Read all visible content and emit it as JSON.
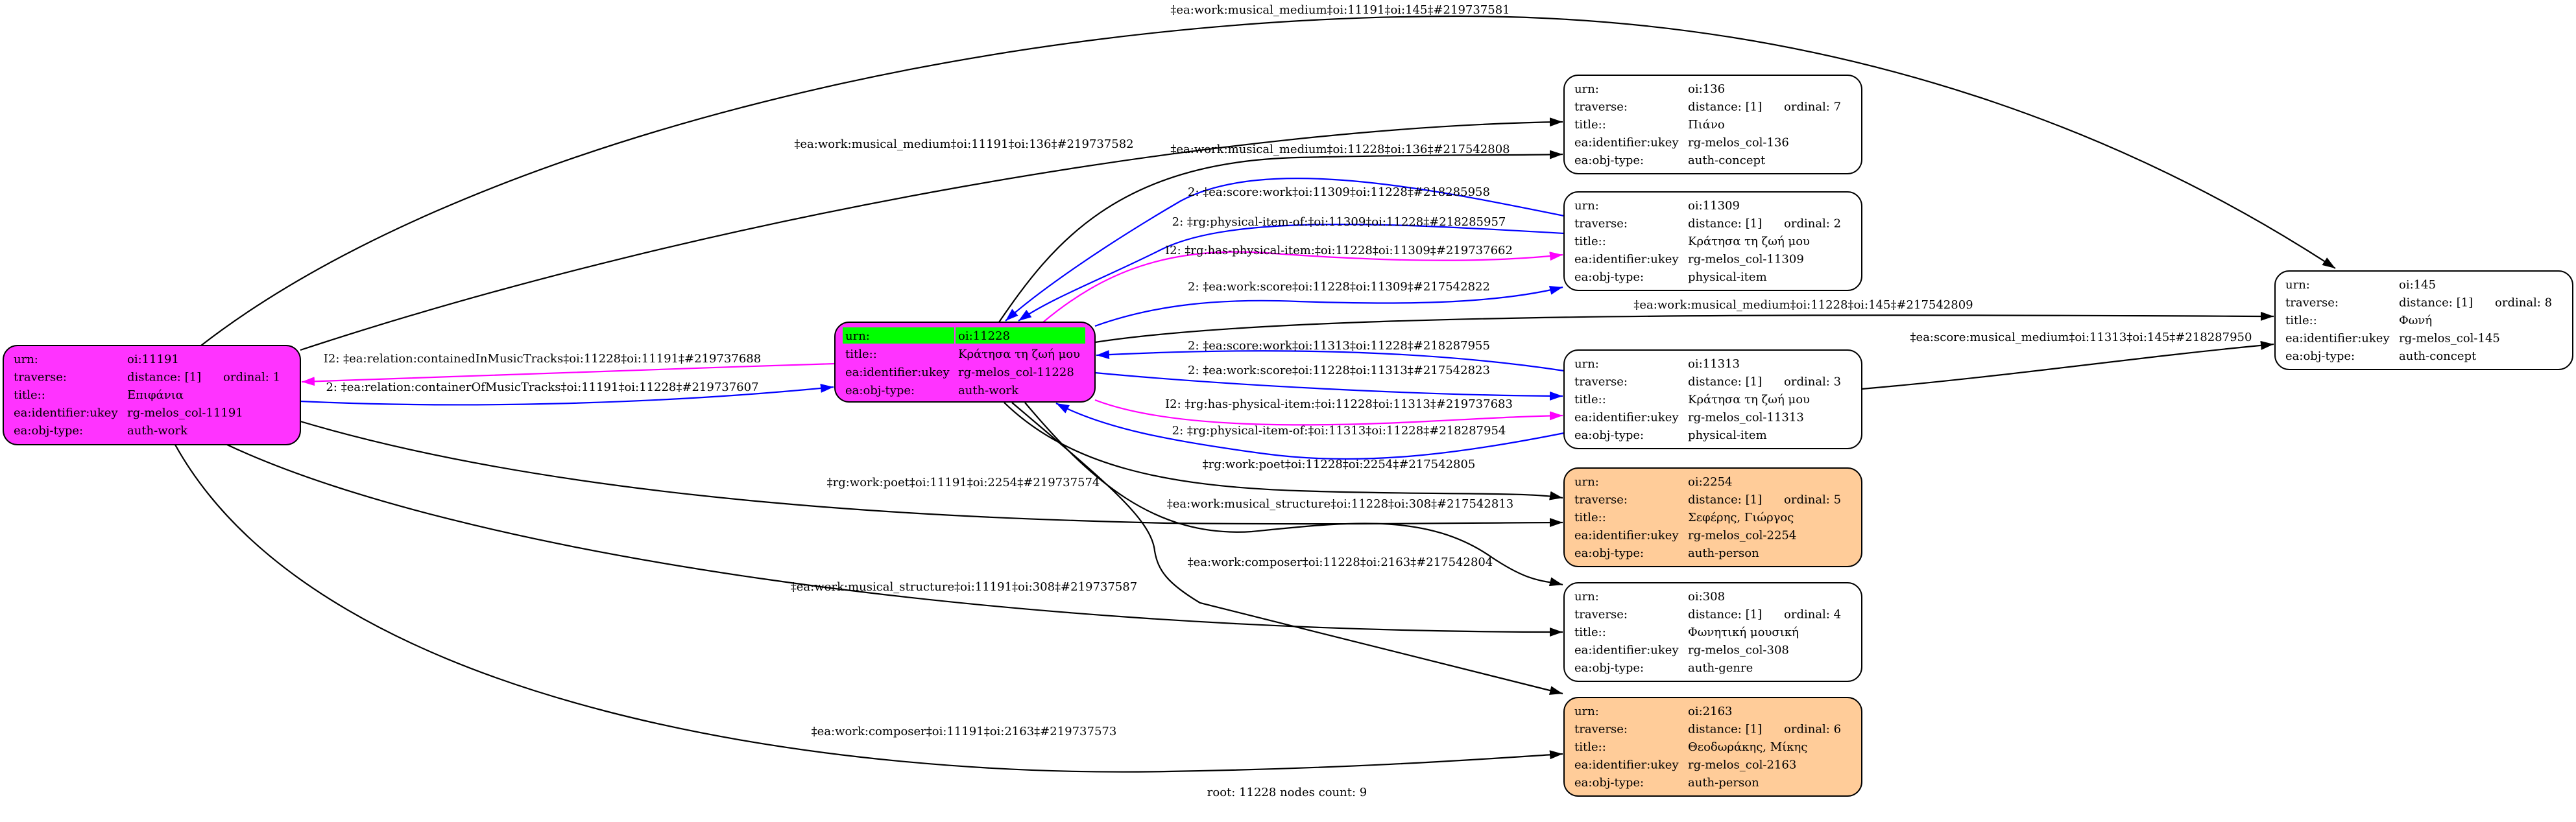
{
  "field_labels": {
    "urn": "urn:",
    "traverse": "traverse:",
    "title": "title::",
    "ukey": "ea:identifier:ukey",
    "obj_type": "ea:obj-type:"
  },
  "colors": {
    "work": "#ff33ff",
    "person": "#ffcc99",
    "default": "#ffffff",
    "root_highlight": "#00ff00",
    "blue_edge": "#0000ff",
    "magenta_edge": "#ff00ff",
    "black_edge": "#000000"
  },
  "nodes": [
    {
      "id": "11191",
      "urn": "oi:11191",
      "distance": "distance: [1]",
      "ordinal": "ordinal: 1",
      "title": "Επιφάνια",
      "ukey": "rg-melos_col-11191",
      "obj_type": "auth-work",
      "fill": "#ff33ff"
    },
    {
      "id": "11228",
      "urn": "oi:11228",
      "title": "Κράτησα τη ζωή μου",
      "ukey": "rg-melos_col-11228",
      "obj_type": "auth-work",
      "fill": "#ff33ff",
      "root": true
    },
    {
      "id": "136",
      "urn": "oi:136",
      "distance": "distance: [1]",
      "ordinal": "ordinal: 7",
      "title": "Πιάνο",
      "ukey": "rg-melos_col-136",
      "obj_type": "auth-concept",
      "fill": "#ffffff"
    },
    {
      "id": "11309",
      "urn": "oi:11309",
      "distance": "distance: [1]",
      "ordinal": "ordinal: 2",
      "title": "Κράτησα τη ζωή μου",
      "ukey": "rg-melos_col-11309",
      "obj_type": "physical-item",
      "fill": "#ffffff"
    },
    {
      "id": "11313",
      "urn": "oi:11313",
      "distance": "distance: [1]",
      "ordinal": "ordinal: 3",
      "title": "Κράτησα τη ζωή μου",
      "ukey": "rg-melos_col-11313",
      "obj_type": "physical-item",
      "fill": "#ffffff"
    },
    {
      "id": "2254",
      "urn": "oi:2254",
      "distance": "distance: [1]",
      "ordinal": "ordinal: 5",
      "title": "Σεφέρης, Γιώργος",
      "ukey": "rg-melos_col-2254",
      "obj_type": "auth-person",
      "fill": "#ffcc99"
    },
    {
      "id": "308",
      "urn": "oi:308",
      "distance": "distance: [1]",
      "ordinal": "ordinal: 4",
      "title": "Φωνητική μουσική",
      "ukey": "rg-melos_col-308",
      "obj_type": "auth-genre",
      "fill": "#ffffff"
    },
    {
      "id": "2163",
      "urn": "oi:2163",
      "distance": "distance: [1]",
      "ordinal": "ordinal: 6",
      "title": "Θεοδωράκης, Μίκης",
      "ukey": "rg-melos_col-2163",
      "obj_type": "auth-person",
      "fill": "#ffcc99"
    },
    {
      "id": "145",
      "urn": "oi:145",
      "distance": "distance: [1]",
      "ordinal": "ordinal: 8",
      "title": "Φωνή",
      "ukey": "rg-melos_col-145",
      "obj_type": "auth-concept",
      "fill": "#ffffff"
    }
  ],
  "edges": [
    {
      "from": "11191",
      "to": "145",
      "color": "black",
      "label": "‡ea:work:musical_medium‡oi:11191‡oi:145‡#219737581"
    },
    {
      "from": "11191",
      "to": "136",
      "color": "black",
      "label": "‡ea:work:musical_medium‡oi:11191‡oi:136‡#219737582"
    },
    {
      "from": "11228",
      "to": "136",
      "color": "black",
      "label": "‡ea:work:musical_medium‡oi:11228‡oi:136‡#217542808"
    },
    {
      "from": "11309",
      "to": "11228",
      "color": "blue",
      "label": "2: ‡ea:score:work‡oi:11309‡oi:11228‡#218285958"
    },
    {
      "from": "11309",
      "to": "11228",
      "color": "blue",
      "label": "2: ‡rg:physical-item-of:‡oi:11309‡oi:11228‡#218285957"
    },
    {
      "from": "11228",
      "to": "11309",
      "color": "magenta",
      "label": "I2: ‡rg:has-physical-item:‡oi:11228‡oi:11309‡#219737662"
    },
    {
      "from": "11228",
      "to": "11309",
      "color": "blue",
      "label": "2: ‡ea:work:score‡oi:11228‡oi:11309‡#217542822"
    },
    {
      "from": "11228",
      "to": "145",
      "color": "black",
      "label": "‡ea:work:musical_medium‡oi:11228‡oi:145‡#217542809"
    },
    {
      "from": "11313",
      "to": "11228",
      "color": "blue",
      "label": "2: ‡ea:score:work‡oi:11313‡oi:11228‡#218287955"
    },
    {
      "from": "11228",
      "to": "11313",
      "color": "blue",
      "label": "2: ‡ea:work:score‡oi:11228‡oi:11313‡#217542823"
    },
    {
      "from": "11228",
      "to": "11313",
      "color": "magenta",
      "label": "I2: ‡rg:has-physical-item:‡oi:11228‡oi:11313‡#219737683"
    },
    {
      "from": "11313",
      "to": "11228",
      "color": "blue",
      "label": "2: ‡rg:physical-item-of:‡oi:11313‡oi:11228‡#218287954"
    },
    {
      "from": "11228",
      "to": "2254",
      "color": "black",
      "label": "‡rg:work:poet‡oi:11228‡oi:2254‡#217542805"
    },
    {
      "from": "11191",
      "to": "2254",
      "color": "black",
      "label": "‡rg:work:poet‡oi:11191‡oi:2254‡#219737574"
    },
    {
      "from": "11228",
      "to": "308",
      "color": "black",
      "label": "‡ea:work:musical_structure‡oi:11228‡oi:308‡#217542813"
    },
    {
      "from": "11228",
      "to": "2163",
      "color": "black",
      "label": "‡ea:work:composer‡oi:11228‡oi:2163‡#217542804"
    },
    {
      "from": "11191",
      "to": "308",
      "color": "black",
      "label": "‡ea:work:musical_structure‡oi:11191‡oi:308‡#219737587"
    },
    {
      "from": "11191",
      "to": "2163",
      "color": "black",
      "label": "‡ea:work:composer‡oi:11191‡oi:2163‡#219737573"
    },
    {
      "from": "11228",
      "to": "11191",
      "color": "magenta",
      "label": "I2: ‡ea:relation:containedInMusicTracks‡oi:11228‡oi:11191‡#219737688"
    },
    {
      "from": "11191",
      "to": "11228",
      "color": "blue",
      "label": "2: ‡ea:relation:containerOfMusicTracks‡oi:11191‡oi:11228‡#219737607"
    },
    {
      "from": "11313",
      "to": "145",
      "color": "black",
      "label": "‡ea:score:musical_medium‡oi:11313‡oi:145‡#218287950"
    }
  ],
  "caption": "root: 11228 nodes count: 9"
}
